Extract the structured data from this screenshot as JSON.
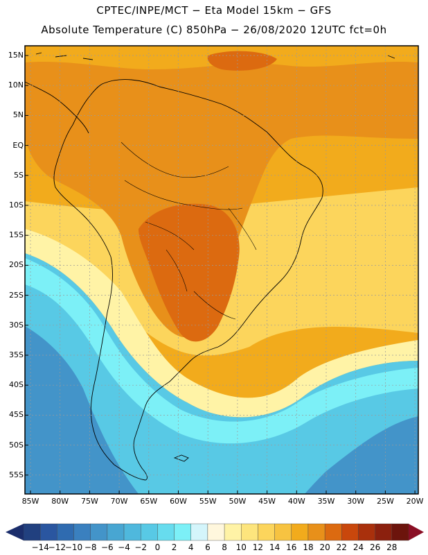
{
  "header": {
    "line1": "CPTEC/INPE/MCT −  Eta Model 15km − GFS",
    "line2": "Absolute Temperature (C) 850hPa − 26/08/2020 12UTC fct=0h"
  },
  "axes": {
    "lat_labels": [
      "15N",
      "10N",
      "5N",
      "EQ",
      "5S",
      "10S",
      "15S",
      "20S",
      "25S",
      "30S",
      "35S",
      "40S",
      "45S",
      "50S",
      "55S"
    ],
    "lon_labels": [
      "85W",
      "80W",
      "75W",
      "70W",
      "65W",
      "60W",
      "55W",
      "50W",
      "45W",
      "40W",
      "35W",
      "30W",
      "25W",
      "20W"
    ]
  },
  "colorbar": {
    "labels": [
      "−14",
      "−12",
      "−10",
      "−8",
      "−6",
      "−4",
      "−2",
      "0",
      "2",
      "4",
      "6",
      "8",
      "10",
      "12",
      "14",
      "16",
      "18",
      "20",
      "22",
      "24",
      "26",
      "28"
    ],
    "colors": [
      "#21407f",
      "#2a56a0",
      "#2f6bb0",
      "#3a80bf",
      "#4394c9",
      "#48a6d2",
      "#4fb8dd",
      "#58c9e5",
      "#67dcee",
      "#7cf0f7",
      "#d4f5fb",
      "#fff7dd",
      "#fff3a6",
      "#fde57d",
      "#fcd55c",
      "#f7c341",
      "#f2ab1c",
      "#e8901a",
      "#dc6a10",
      "#c9470c",
      "#a9300c",
      "#8b200e",
      "#6c140c"
    ],
    "left_arrow_color": "#1a2d6b",
    "right_arrow_color": "#8a0e24"
  },
  "land_shading": {
    "ocean_north_color": "#f2ab1c",
    "tropical_land_color": "#e8901a",
    "hot_core_color": "#dc6a10",
    "warm_band_color": "#fcd55c",
    "pale_band_color": "#fff3a6",
    "cool_ocean_color": "#58c9e5",
    "cold_ocean_color": "#4394c9",
    "cyan_band_color": "#7cf0f7"
  }
}
